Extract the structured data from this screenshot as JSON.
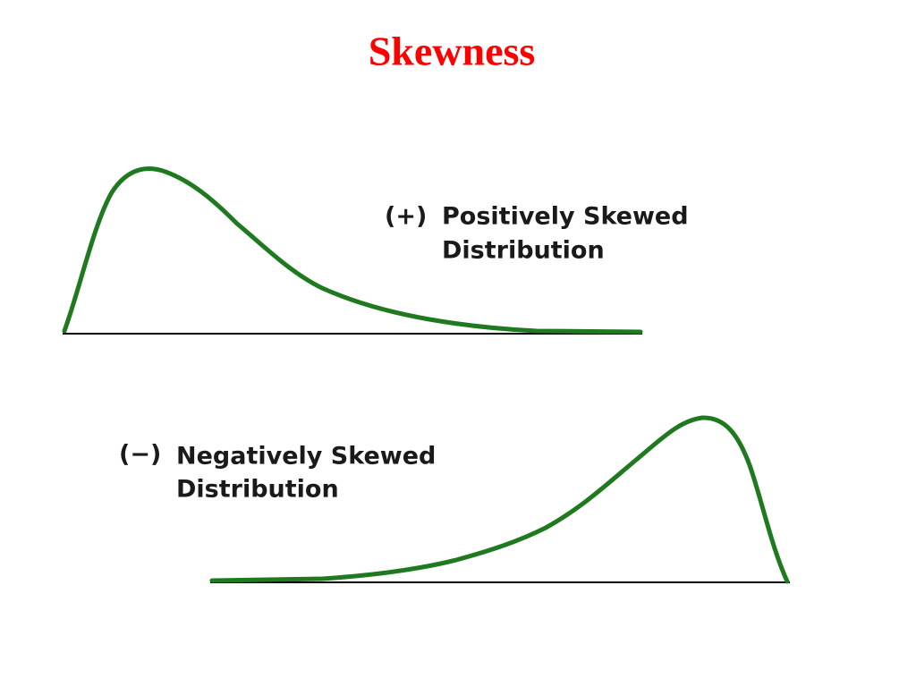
{
  "title": "Skewness",
  "panels": [
    {
      "sign": "(+)",
      "label_lines": [
        "Positively Skewed",
        "Distribution"
      ]
    },
    {
      "sign": "(−)",
      "label_lines": [
        "Negatively Skewed",
        "Distribution"
      ]
    }
  ]
}
